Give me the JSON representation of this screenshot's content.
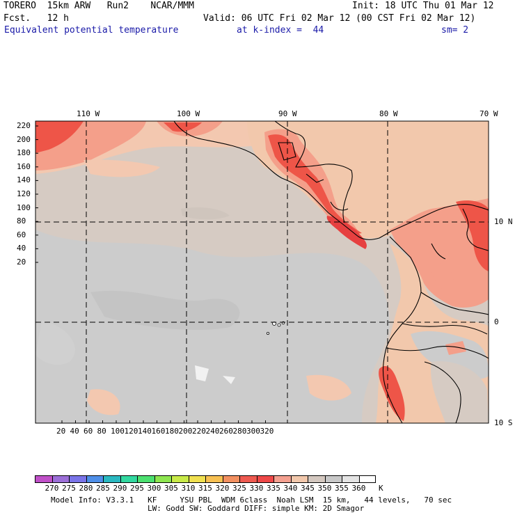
{
  "header": {
    "model": "TORERO  15km ARW   Run2    NCAR/MMM",
    "init": "Init: 18 UTC Thu 01 Mar 12",
    "fcst": "Fcst.   12 h",
    "valid": "Valid: 06 UTC Fri 02 Mar 12 (00 CST Fri 02 Mar 12)",
    "field": "Equivalent potential temperature",
    "kindex": "at k-index =  44",
    "sm": "sm= 2"
  },
  "map": {
    "top_lon_labels": [
      "110 W",
      "100 W",
      "90 W",
      "80 W",
      "70 W"
    ],
    "right_lat_labels": [
      "10 N",
      "0",
      "10 S"
    ],
    "y_ticks": [
      "220",
      "200",
      "180",
      "160",
      "140",
      "120",
      "100",
      "80",
      "60",
      "40",
      "20"
    ],
    "x_ticks": [
      "20",
      "40",
      "60",
      "80",
      "100",
      "120",
      "140",
      "160",
      "180",
      "200",
      "220",
      "240",
      "260",
      "280",
      "300",
      "320"
    ]
  },
  "colorbar": {
    "labels": [
      "270",
      "275",
      "280",
      "285",
      "290",
      "295",
      "300",
      "305",
      "310",
      "315",
      "320",
      "325",
      "330",
      "335",
      "340",
      "345",
      "350",
      "355",
      "360",
      "K"
    ],
    "colors": [
      "#c050c8",
      "#9c6fd8",
      "#7a74e8",
      "#4f8fe8",
      "#2ab8c0",
      "#32d8a0",
      "#4ce070",
      "#8ee650",
      "#c8ea48",
      "#f0e050",
      "#f7c052",
      "#f29060",
      "#ee5a50",
      "#ee4848",
      "#f4a090",
      "#f2c8ac",
      "#d4c8c0",
      "#c8c8c8",
      "#e4e4e4",
      "#ffffff"
    ]
  },
  "footer": {
    "line1": "Model Info: V3.3.1   KF     YSU PBL  WDM 6class  Noah LSM  15 km,   44 levels,   70 sec",
    "line2": "LW: Godd SW: Goddard DIFF: simple KM: 2D Smagor"
  }
}
